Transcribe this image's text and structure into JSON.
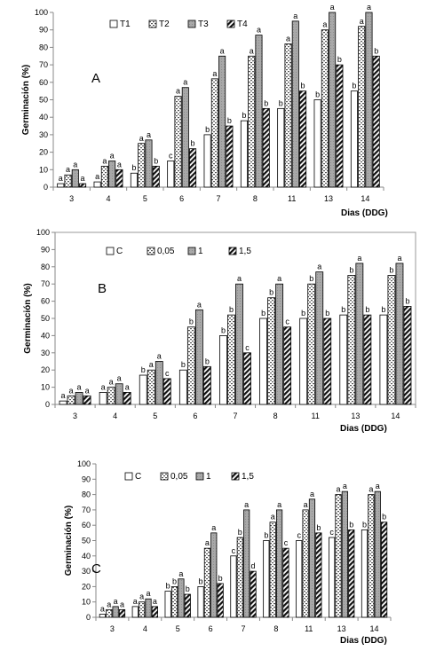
{
  "chart_data": [
    {
      "type": "bar",
      "panel_label": "A",
      "ylabel": "Germinación (%)",
      "xlabel": "Dias (DDG)",
      "ylim": [
        0,
        100
      ],
      "yticks": [
        0,
        10,
        20,
        30,
        40,
        50,
        60,
        70,
        80,
        90,
        100
      ],
      "legend_position": "top-left",
      "categories": [
        "3",
        "4",
        "5",
        "6",
        "7",
        "8",
        "11",
        "13",
        "14"
      ],
      "series": [
        {
          "name": "T1",
          "values": [
            2,
            3,
            8,
            15,
            30,
            38,
            45,
            50,
            55
          ],
          "letters": [
            "a",
            "a",
            "b",
            "c",
            "b",
            "b",
            "b",
            "b",
            "b"
          ]
        },
        {
          "name": "T2",
          "values": [
            7,
            12,
            25,
            52,
            62,
            75,
            82,
            90,
            92
          ],
          "letters": [
            "a",
            "a",
            "a",
            "a",
            "a",
            "a",
            "a",
            "a",
            "a"
          ]
        },
        {
          "name": "T3",
          "values": [
            10,
            15,
            27,
            57,
            75,
            87,
            95,
            100,
            100
          ],
          "letters": [
            "a",
            "a",
            "a",
            "a",
            "a",
            "a",
            "a",
            "a",
            "a"
          ]
        },
        {
          "name": "T4",
          "values": [
            2,
            10,
            12,
            22,
            35,
            45,
            55,
            70,
            75
          ],
          "letters": [
            "a",
            "a",
            "b",
            "b",
            "b",
            "b",
            "b",
            "b",
            "b"
          ]
        }
      ]
    },
    {
      "type": "bar",
      "panel_label": "B",
      "ylabel": "Germinación (%)",
      "xlabel": "Dias (DDG)",
      "ylim": [
        0,
        100
      ],
      "yticks": [
        0,
        10,
        20,
        30,
        40,
        50,
        60,
        70,
        80,
        90,
        100
      ],
      "legend_position": "top-left",
      "categories": [
        "3",
        "4",
        "5",
        "6",
        "7",
        "8",
        "11",
        "13",
        "14"
      ],
      "series": [
        {
          "name": "C",
          "values": [
            2,
            7,
            17,
            20,
            40,
            50,
            50,
            52,
            52
          ],
          "letters": [
            "a",
            "a",
            "b",
            "b",
            "b",
            "b",
            "b",
            "b",
            "b"
          ]
        },
        {
          "name": "0,05",
          "values": [
            5,
            10,
            20,
            45,
            52,
            62,
            70,
            75,
            75
          ],
          "letters": [
            "a",
            "a",
            "a",
            "b",
            "b",
            "b",
            "b",
            "b",
            "b"
          ]
        },
        {
          "name": "1",
          "values": [
            7,
            12,
            25,
            55,
            70,
            70,
            77,
            82,
            82
          ],
          "letters": [
            "a",
            "a",
            "a",
            "a",
            "a",
            "a",
            "a",
            "a",
            "a"
          ]
        },
        {
          "name": "1,5",
          "values": [
            5,
            7,
            15,
            22,
            30,
            45,
            50,
            52,
            57
          ],
          "letters": [
            "a",
            "a",
            "c",
            "b",
            "c",
            "c",
            "b",
            "b",
            "b"
          ]
        }
      ]
    },
    {
      "type": "bar",
      "panel_label": "C",
      "ylabel": "Germinación (%)",
      "xlabel": "Dias (DDG)",
      "ylim": [
        0,
        100
      ],
      "yticks": [
        0,
        10,
        20,
        30,
        40,
        50,
        60,
        70,
        80,
        90,
        100
      ],
      "legend_position": "top-center",
      "categories": [
        "3",
        "4",
        "5",
        "6",
        "7",
        "8",
        "11",
        "13",
        "14"
      ],
      "series": [
        {
          "name": "C",
          "values": [
            2,
            7,
            17,
            20,
            40,
            50,
            50,
            52,
            57
          ],
          "letters": [
            "a",
            "a",
            "b",
            "b",
            "c",
            "b",
            "c",
            "c",
            "b"
          ]
        },
        {
          "name": "0,05",
          "values": [
            5,
            10,
            20,
            45,
            52,
            62,
            70,
            80,
            80
          ],
          "letters": [
            "a",
            "a",
            "b",
            "a",
            "b",
            "a",
            "a",
            "a",
            "a"
          ]
        },
        {
          "name": "1",
          "values": [
            7,
            12,
            25,
            55,
            70,
            70,
            77,
            82,
            82
          ],
          "letters": [
            "a",
            "a",
            "a",
            "a",
            "a",
            "a",
            "a",
            "a",
            "a"
          ]
        },
        {
          "name": "1,5",
          "values": [
            5,
            7,
            15,
            22,
            30,
            45,
            55,
            57,
            62
          ],
          "letters": [
            "a",
            "a",
            "b",
            "b",
            "d",
            "c",
            "b",
            "b",
            "b"
          ]
        }
      ]
    }
  ]
}
